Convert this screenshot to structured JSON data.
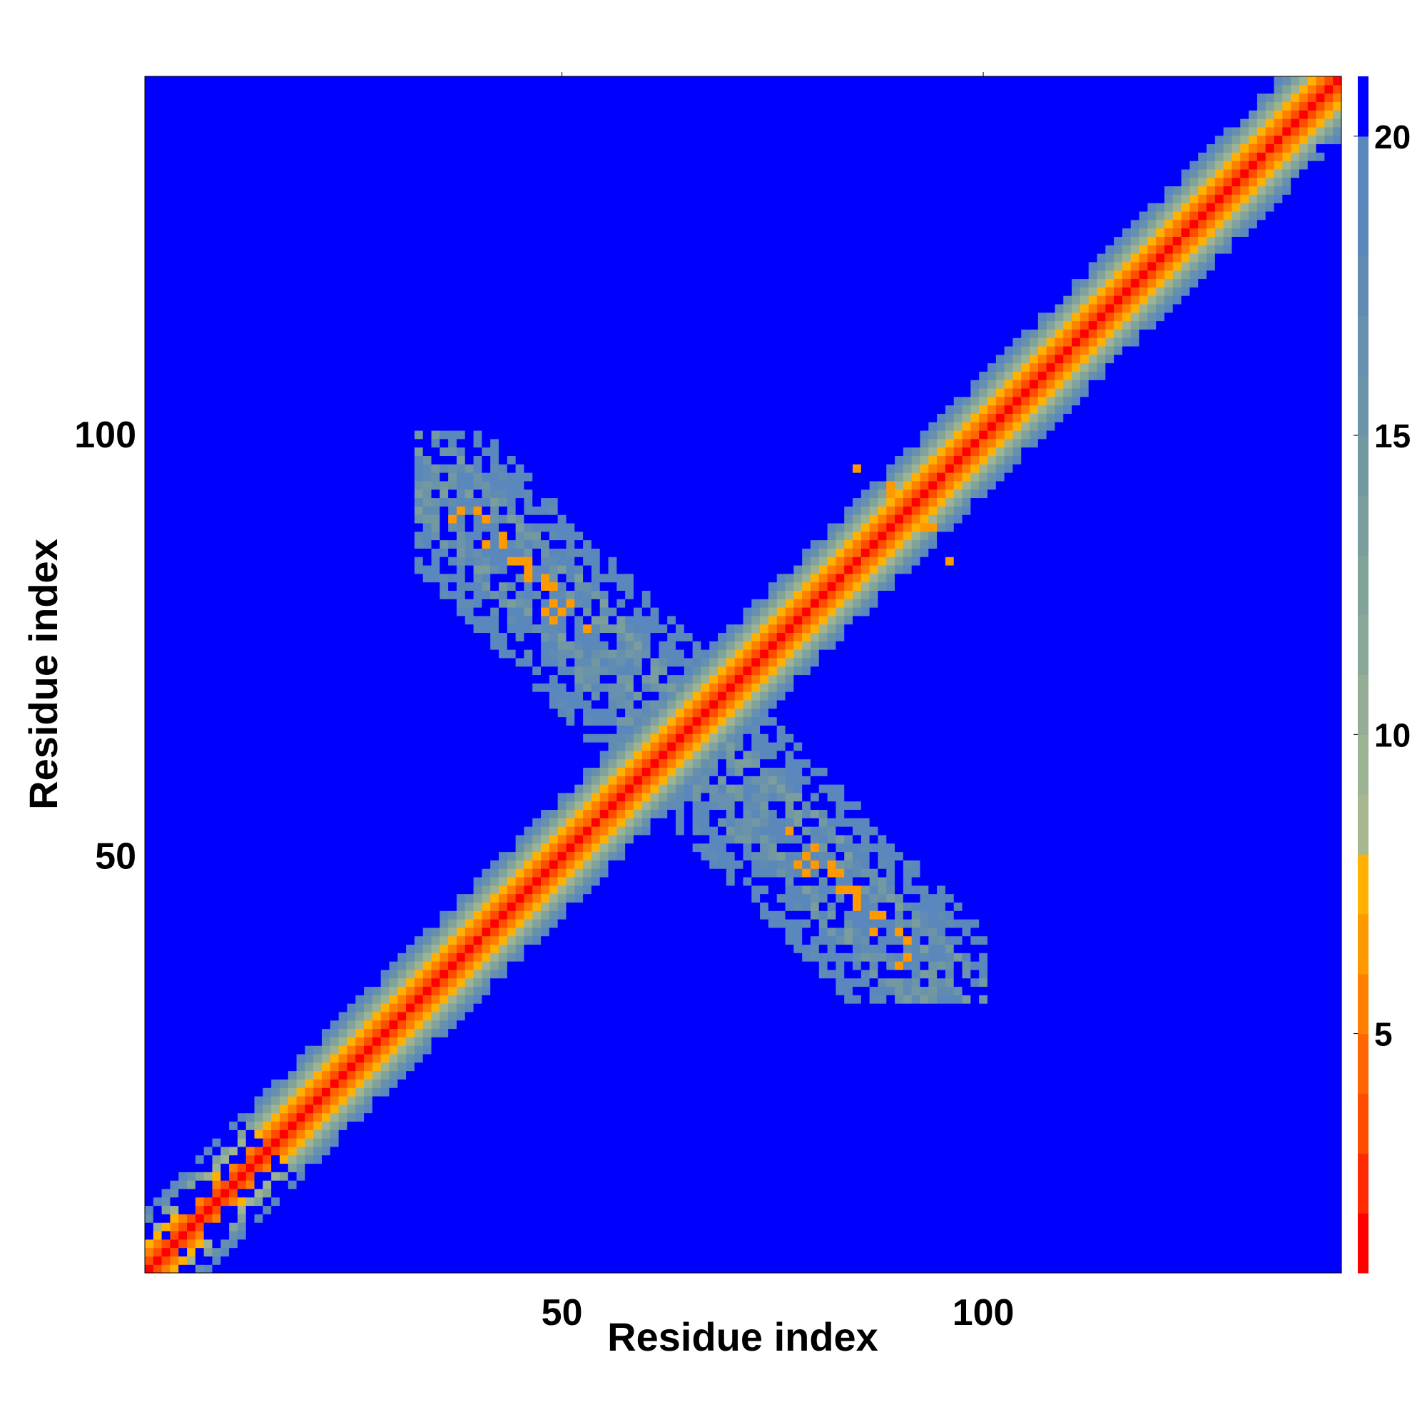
{
  "chart_data": {
    "type": "heatmap",
    "title": "",
    "xlabel": "Residue index",
    "ylabel": "Residue index",
    "n_residues": 142,
    "xlim": [
      0.5,
      142.5
    ],
    "ylim": [
      0.5,
      142.5
    ],
    "x_ticks": [
      50,
      100
    ],
    "y_ticks": [
      50,
      100
    ],
    "x_tick_labels": [
      "50",
      "100"
    ],
    "y_tick_labels": [
      "50",
      "100"
    ],
    "colorbar": {
      "range": [
        1,
        21
      ],
      "ticks": [
        5,
        10,
        15,
        20
      ],
      "tick_labels": [
        "5",
        "10",
        "15",
        "20"
      ],
      "levels": [
        {
          "to": 2,
          "color": "#ff0000"
        },
        {
          "to": 3,
          "color": "#ff2a00"
        },
        {
          "to": 4,
          "color": "#ff4d00"
        },
        {
          "to": 5,
          "color": "#ff6600"
        },
        {
          "to": 6,
          "color": "#ff8000"
        },
        {
          "to": 7,
          "color": "#ff9900"
        },
        {
          "to": 8,
          "color": "#ffb000"
        },
        {
          "to": 9,
          "color": "#a7b890"
        },
        {
          "to": 10,
          "color": "#9cb394"
        },
        {
          "to": 11,
          "color": "#94ae96"
        },
        {
          "to": 12,
          "color": "#8aa898"
        },
        {
          "to": 13,
          "color": "#82a39a"
        },
        {
          "to": 14,
          "color": "#7a9d9e"
        },
        {
          "to": 15,
          "color": "#7298a2"
        },
        {
          "to": 16,
          "color": "#6c94a8"
        },
        {
          "to": 17,
          "color": "#6690ae"
        },
        {
          "to": 18,
          "color": "#608cb4"
        },
        {
          "to": 19,
          "color": "#5a88ba"
        },
        {
          "to": 20,
          "color": "#5a87bd"
        },
        {
          "to": 21,
          "color": "#0000ff"
        }
      ]
    },
    "background_value": 21,
    "description_of_features": {
      "diagonal_band": {
        "core_value": 1.5,
        "halfwidth_residues": 6
      },
      "antiparallel_sheet": {
        "center": [
          64,
          65
        ],
        "i_plus_j": 129,
        "i_range": [
          33,
          100
        ],
        "closest_contacts_value": 5
      }
    },
    "notable_cells": [
      {
        "i": 89,
        "j": 93,
        "value": 6.5
      },
      {
        "i": 89,
        "j": 94,
        "value": 6.8
      },
      {
        "i": 85,
        "j": 96,
        "value": 6.5
      },
      {
        "i": 93,
        "j": 89,
        "value": 6.5
      },
      {
        "i": 94,
        "j": 89,
        "value": 6.8
      },
      {
        "i": 96,
        "j": 85,
        "value": 6.5
      },
      {
        "i": 130,
        "j": 138,
        "value": 21
      },
      {
        "i": 140,
        "j": 134,
        "value": 21
      },
      {
        "i": 126,
        "j": 142,
        "value": 21
      }
    ]
  }
}
